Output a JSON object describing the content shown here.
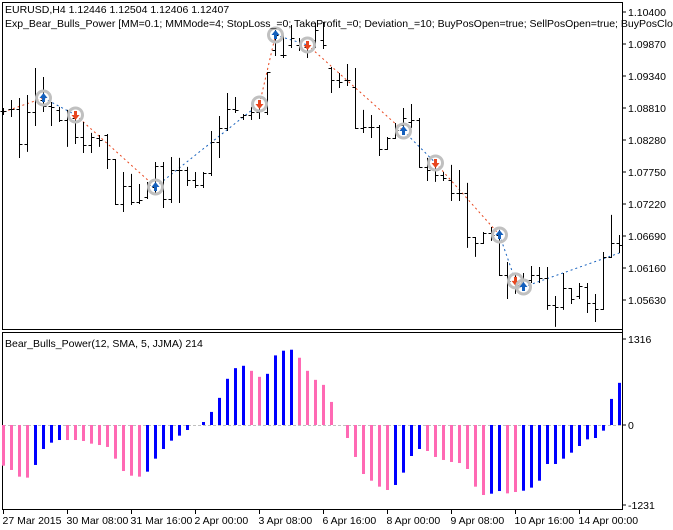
{
  "header": {
    "symbol_line": "EURUSD,H4  1.12446 1.12504 1.12406 1.12407",
    "expert_line": "Exp_Bear_Bulls_Power [MM=0.1; MMMode=4; StopLoss_=0; TakeProfit_=0; Deviation_=10; BuyPosOpen=true; SellPosOpen=true; BuyPosClose"
  },
  "indicator_label": "Bear_Bulls_Power(12, SMA, 5, JJMA) 214",
  "colors": {
    "bar": "#000000",
    "hist_bull": "#0000ff",
    "hist_bear": "#ff69b4",
    "buy_signal": "#1560bd",
    "sell_signal": "#e8461e",
    "marker_ring": "#c0c0c0",
    "zero_line": "#c0c0c0"
  },
  "chart_data": [
    {
      "type": "ohlc",
      "symbol": "EURUSD",
      "timeframe": "H4",
      "ylim": [
        1.051,
        1.106
      ],
      "y_ticks": [
        "1.10400",
        "1.09870",
        "1.09340",
        "1.08810",
        "1.08280",
        "1.07750",
        "1.07220",
        "1.06690",
        "1.06160",
        "1.05630"
      ],
      "x_tick_labels": [
        "27 Mar 2015",
        "30 Mar 08:00",
        "31 Mar 16:00",
        "2 Apr 00:00",
        "3 Apr 08:00",
        "6 Apr 16:00",
        "8 Apr 00:00",
        "9 Apr 08:00",
        "10 Apr 16:00",
        "14 Apr 00:00"
      ],
      "x_tick_every_bars": 8,
      "ohlc": [
        [
          1.08761,
          1.08811,
          1.08711,
          1.08761
        ],
        [
          1.08794,
          1.08943,
          1.08678,
          1.08794
        ],
        [
          1.08794,
          1.08976,
          1.07999,
          1.08215
        ],
        [
          1.08215,
          1.09026,
          1.08099,
          1.08744
        ],
        [
          1.08744,
          1.09473,
          1.08529,
          1.09026
        ],
        [
          1.08943,
          1.09324,
          1.08761,
          1.08844
        ],
        [
          1.08844,
          1.0891,
          1.08529,
          1.08828
        ],
        [
          1.08778,
          1.08828,
          1.08595,
          1.08612
        ],
        [
          1.08612,
          1.08778,
          1.08182,
          1.08645
        ],
        [
          1.08645,
          1.08695,
          1.08231,
          1.0833
        ],
        [
          1.0833,
          1.08579,
          1.08082,
          1.08198
        ],
        [
          1.08198,
          1.08397,
          1.08082,
          1.0833
        ],
        [
          1.08314,
          1.08363,
          1.08182,
          1.08281
        ],
        [
          1.08363,
          1.0838,
          1.07817,
          1.07966
        ],
        [
          1.07966,
          1.07966,
          1.07221,
          1.07221
        ],
        [
          1.07221,
          1.07751,
          1.07105,
          1.07519
        ],
        [
          1.07519,
          1.07718,
          1.07221,
          1.07254
        ],
        [
          1.07254,
          1.07552,
          1.07237,
          1.07287
        ],
        [
          1.07337,
          1.07585,
          1.0732,
          1.07535
        ],
        [
          1.07502,
          1.07916,
          1.07403,
          1.0785
        ],
        [
          1.0785,
          1.07916,
          1.07171,
          1.07304
        ],
        [
          1.07304,
          1.07999,
          1.07254,
          1.07784
        ],
        [
          1.07784,
          1.07983,
          1.07254,
          1.07784
        ],
        [
          1.07784,
          1.07834,
          1.07535,
          1.07618
        ],
        [
          1.07618,
          1.07751,
          1.07502,
          1.07535
        ],
        [
          1.07535,
          1.07751,
          1.07502,
          1.07734
        ],
        [
          1.07734,
          1.0843,
          1.07701,
          1.08248
        ],
        [
          1.08248,
          1.08678,
          1.07999,
          1.08479
        ],
        [
          1.08479,
          1.09059,
          1.08446,
          1.08794
        ],
        [
          1.08794,
          1.08993,
          1.08744,
          1.08778
        ],
        [
          1.08661,
          1.08711,
          1.08628,
          1.08695
        ],
        [
          1.08695,
          1.08828,
          1.08628,
          1.08744
        ],
        [
          1.08744,
          1.0891,
          1.08645,
          1.08778
        ],
        [
          1.08744,
          1.09407,
          1.08711,
          1.09407
        ],
        [
          1.09771,
          1.10102,
          1.09688,
          1.10019
        ],
        [
          1.09688,
          1.10019,
          1.09655,
          1.09688
        ],
        [
          1.09854,
          1.10185,
          1.09821,
          1.0997
        ],
        [
          1.09854,
          1.0997,
          1.09771,
          1.09821
        ],
        [
          1.09821,
          1.09904,
          1.09655,
          1.09854
        ],
        [
          1.09937,
          1.10218,
          1.09821,
          1.10102
        ],
        [
          1.09937,
          1.10235,
          1.09804,
          1.09854
        ],
        [
          1.09473,
          1.09489,
          1.09075,
          1.09274
        ],
        [
          1.09274,
          1.0939,
          1.09158,
          1.09241
        ],
        [
          1.09274,
          1.09539,
          1.09191,
          1.09274
        ],
        [
          1.09158,
          1.09473,
          1.08479,
          1.08479
        ],
        [
          1.08479,
          1.08778,
          1.08413,
          1.08496
        ],
        [
          1.08496,
          1.08695,
          1.0833,
          1.08496
        ],
        [
          1.08496,
          1.08529,
          1.08032,
          1.08132
        ],
        [
          1.08132,
          1.0833,
          1.08132,
          1.08314
        ],
        [
          1.08314,
          1.08562,
          1.08314,
          1.08446
        ],
        [
          1.08529,
          1.08811,
          1.08496,
          1.08645
        ],
        [
          1.08579,
          1.08877,
          1.08496,
          1.08612
        ],
        [
          1.08612,
          1.08645,
          1.07834,
          1.07834
        ],
        [
          1.07834,
          1.07983,
          1.07618,
          1.07784
        ],
        [
          1.07784,
          1.07916,
          1.07602,
          1.07701
        ],
        [
          1.07701,
          1.07751,
          1.07618,
          1.07651
        ],
        [
          1.07618,
          1.07867,
          1.07287,
          1.07403
        ],
        [
          1.07403,
          1.07784,
          1.07287,
          1.07403
        ],
        [
          1.07403,
          1.07569,
          1.06509,
          1.06674
        ],
        [
          1.06674,
          1.06674,
          1.0636,
          1.06575
        ],
        [
          1.06575,
          1.06757,
          1.06575,
          1.0674
        ],
        [
          1.0674,
          1.0684,
          1.06625,
          1.06707
        ],
        [
          1.06707,
          1.06791,
          1.06045,
          1.06045
        ],
        [
          1.06045,
          1.0626,
          1.05664,
          1.05946
        ],
        [
          1.05946,
          1.06078,
          1.05747,
          1.05879
        ],
        [
          1.05879,
          1.06078,
          1.05845,
          1.05962
        ],
        [
          1.05962,
          1.06194,
          1.05929,
          1.06045
        ],
        [
          1.06045,
          1.06177,
          1.05929,
          1.05995
        ],
        [
          1.05995,
          1.06177,
          1.05482,
          1.05548
        ],
        [
          1.05548,
          1.05697,
          1.05201,
          1.05515
        ],
        [
          1.05515,
          1.06078,
          1.05482,
          1.05829
        ],
        [
          1.05829,
          1.05829,
          1.05581,
          1.05648
        ],
        [
          1.05697,
          1.05912,
          1.05664,
          1.05862
        ],
        [
          1.05845,
          1.05912,
          1.05431,
          1.05581
        ],
        [
          1.05581,
          1.0573,
          1.05283,
          1.05482
        ],
        [
          1.05482,
          1.06426,
          1.05482,
          1.06343
        ],
        [
          1.06343,
          1.07039,
          1.06343,
          1.06575
        ],
        [
          1.06575,
          1.06707,
          1.06426,
          1.06542
        ]
      ],
      "signals": [
        {
          "bar": 5,
          "type": "buy",
          "price": 1.08976
        },
        {
          "bar": 9,
          "type": "sell",
          "price": 1.08695
        },
        {
          "bar": 19,
          "type": "buy",
          "price": 1.07502
        },
        {
          "bar": 32,
          "type": "sell",
          "price": 1.08877
        },
        {
          "bar": 34,
          "type": "buy",
          "price": 1.10019
        },
        {
          "bar": 38,
          "type": "sell",
          "price": 1.09854
        },
        {
          "bar": 50,
          "type": "buy",
          "price": 1.0843
        },
        {
          "bar": 54,
          "type": "sell",
          "price": 1.079
        },
        {
          "bar": 62,
          "type": "buy",
          "price": 1.06707
        },
        {
          "bar": 64,
          "type": "sell",
          "price": 1.05946
        },
        {
          "bar": 65,
          "type": "buy",
          "price": 1.05845
        }
      ],
      "trade_line_start": {
        "bar": 0,
        "price": 1.08744,
        "type": "sell"
      },
      "trade_line_end": {
        "bar": 77,
        "price": 1.06409
      }
    },
    {
      "type": "bar",
      "name": "Bear_Bulls_Power(12, SMA, 5, JJMA)",
      "ylim": [
        -1231,
        1316
      ],
      "y_ticks": [
        "1316",
        "0",
        "-1231"
      ],
      "values": [
        -626,
        -692,
        -795,
        -810,
        -615,
        -369,
        -272,
        -231,
        -231,
        -231,
        -246,
        -287,
        -308,
        -338,
        -518,
        -708,
        -780,
        -795,
        -718,
        -518,
        -369,
        -241,
        -164,
        -77,
        0,
        46,
        200,
        415,
        707,
        870,
        906,
        829,
        737,
        783,
        1065,
        1137,
        1152,
        1029,
        829,
        691,
        614,
        353,
        0,
        -200,
        -492,
        -754,
        -857,
        -949,
        -1000,
        -923,
        -733,
        -477,
        -369,
        -400,
        -492,
        -538,
        -569,
        -585,
        -677,
        -949,
        -1077,
        -1057,
        -1016,
        -1052,
        -1031,
        -1011,
        -964,
        -857,
        -600,
        -600,
        -518,
        -426,
        -323,
        -221,
        -200,
        -87,
        399,
        645
      ],
      "value_colors": [
        "pink",
        "pink",
        "pink",
        "pink",
        "blue",
        "blue",
        "blue",
        "blue",
        "pink",
        "pink",
        "pink",
        "pink",
        "pink",
        "pink",
        "pink",
        "pink",
        "pink",
        "pink",
        "blue",
        "blue",
        "blue",
        "blue",
        "blue",
        "blue",
        "blue",
        "blue",
        "blue",
        "blue",
        "blue",
        "blue",
        "blue",
        "pink",
        "pink",
        "blue",
        "blue",
        "blue",
        "blue",
        "pink",
        "pink",
        "pink",
        "pink",
        "pink",
        "pink",
        "pink",
        "pink",
        "pink",
        "pink",
        "pink",
        "pink",
        "blue",
        "blue",
        "blue",
        "blue",
        "pink",
        "pink",
        "pink",
        "pink",
        "pink",
        "pink",
        "pink",
        "pink",
        "blue",
        "blue",
        "pink",
        "pink",
        "blue",
        "blue",
        "blue",
        "blue",
        "blue",
        "blue",
        "blue",
        "blue",
        "blue",
        "blue",
        "blue",
        "blue",
        "blue"
      ]
    }
  ]
}
